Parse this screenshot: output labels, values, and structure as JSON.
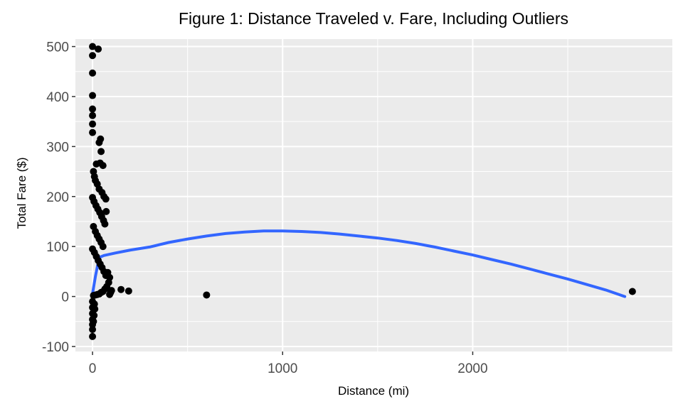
{
  "chart_data": {
    "type": "scatter",
    "title": "Figure 1: Distance Traveled v. Fare, Including Outliers",
    "xlabel": "Distance (mi)",
    "ylabel": "Total Fare ($)",
    "xlim": [
      -90,
      3050
    ],
    "ylim": [
      -110,
      515
    ],
    "x_ticks": [
      0,
      1000,
      2000
    ],
    "y_ticks": [
      -100,
      0,
      100,
      200,
      300,
      400,
      500
    ],
    "background": "#ebebeb",
    "grid": true,
    "point_color": "#000000",
    "smooth_color": "#3366ff",
    "points": [
      [
        0,
        500
      ],
      [
        0,
        482
      ],
      [
        0,
        447
      ],
      [
        0,
        402
      ],
      [
        0,
        375
      ],
      [
        0,
        362
      ],
      [
        0,
        345
      ],
      [
        0,
        328
      ],
      [
        30,
        495
      ],
      [
        42,
        315
      ],
      [
        35,
        308
      ],
      [
        45,
        290
      ],
      [
        40,
        267
      ],
      [
        20,
        265
      ],
      [
        55,
        262
      ],
      [
        5,
        250
      ],
      [
        10,
        240
      ],
      [
        15,
        232
      ],
      [
        25,
        225
      ],
      [
        35,
        215
      ],
      [
        50,
        208
      ],
      [
        60,
        200
      ],
      [
        0,
        198
      ],
      [
        8,
        190
      ],
      [
        18,
        182
      ],
      [
        28,
        175
      ],
      [
        38,
        168
      ],
      [
        48,
        160
      ],
      [
        58,
        152
      ],
      [
        70,
        195
      ],
      [
        72,
        170
      ],
      [
        65,
        145
      ],
      [
        5,
        140
      ],
      [
        15,
        130
      ],
      [
        25,
        122
      ],
      [
        35,
        115
      ],
      [
        45,
        108
      ],
      [
        55,
        100
      ],
      [
        0,
        95
      ],
      [
        10,
        88
      ],
      [
        20,
        80
      ],
      [
        30,
        72
      ],
      [
        40,
        65
      ],
      [
        50,
        58
      ],
      [
        60,
        50
      ],
      [
        70,
        42
      ],
      [
        80,
        48
      ],
      [
        90,
        38
      ],
      [
        85,
        28
      ],
      [
        75,
        20
      ],
      [
        65,
        15
      ],
      [
        55,
        10
      ],
      [
        45,
        8
      ],
      [
        35,
        5
      ],
      [
        25,
        4
      ],
      [
        15,
        3
      ],
      [
        5,
        2
      ],
      [
        95,
        8
      ],
      [
        90,
        4
      ],
      [
        100,
        12
      ],
      [
        150,
        14
      ],
      [
        190,
        11
      ],
      [
        600,
        3
      ],
      [
        2840,
        10
      ],
      [
        0,
        -10
      ],
      [
        0,
        -22
      ],
      [
        0,
        -34
      ],
      [
        0,
        -46
      ],
      [
        0,
        -56
      ],
      [
        0,
        -66
      ],
      [
        0,
        -80
      ],
      [
        10,
        -15
      ],
      [
        12,
        -25
      ],
      [
        8,
        -38
      ],
      [
        5,
        -50
      ]
    ],
    "smooth": [
      [
        0,
        5
      ],
      [
        15,
        40
      ],
      [
        35,
        78
      ],
      [
        60,
        82
      ],
      [
        120,
        87
      ],
      [
        200,
        93
      ],
      [
        300,
        99
      ],
      [
        400,
        108
      ],
      [
        500,
        115
      ],
      [
        600,
        121
      ],
      [
        700,
        126
      ],
      [
        800,
        129
      ],
      [
        900,
        131
      ],
      [
        1000,
        131
      ],
      [
        1100,
        130
      ],
      [
        1200,
        128
      ],
      [
        1300,
        125
      ],
      [
        1400,
        121
      ],
      [
        1500,
        117
      ],
      [
        1600,
        112
      ],
      [
        1700,
        106
      ],
      [
        1800,
        99
      ],
      [
        1900,
        91
      ],
      [
        2000,
        83
      ],
      [
        2100,
        74
      ],
      [
        2200,
        65
      ],
      [
        2300,
        55
      ],
      [
        2400,
        45
      ],
      [
        2500,
        35
      ],
      [
        2600,
        24
      ],
      [
        2700,
        13
      ],
      [
        2800,
        0
      ]
    ]
  }
}
